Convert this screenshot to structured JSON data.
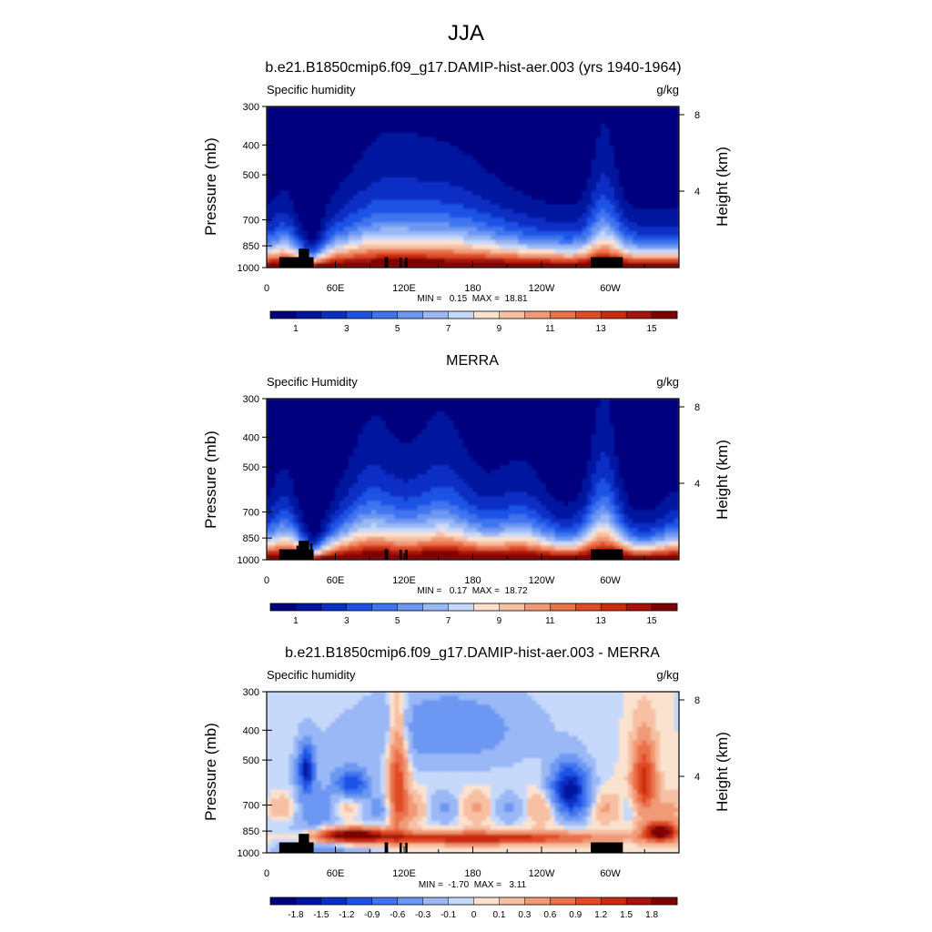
{
  "figure": {
    "title": "JJA"
  },
  "chart_data": [
    {
      "type": "heatmap",
      "title": "b.e21.B1850cmip6.f09_g17.DAMIP-hist-aer.003 (yrs 1940-1964)",
      "left_label": "Specific humidity",
      "right_label": "g/kg",
      "ylabel": "Pressure (mb)",
      "y2label": "Height (km)",
      "y_ticks": [
        "300",
        "400",
        "500",
        "700",
        "850",
        "1000"
      ],
      "y_tick_values": [
        300,
        400,
        500,
        700,
        850,
        1000
      ],
      "y2_ticks": [
        "8",
        "4"
      ],
      "y2_tick_values": [
        8,
        4
      ],
      "x_ticks": [
        "0",
        "60E",
        "120E",
        "180",
        "120W",
        "60W"
      ],
      "x_tick_values": [
        0,
        60,
        120,
        180,
        240,
        300
      ],
      "xlim": [
        0,
        360
      ],
      "ylim": [
        1000,
        300
      ],
      "minmax": "MIN =   0.15  MAX =  18.81",
      "min": 0.15,
      "max": 18.81,
      "colorbar_levels": [
        0,
        1,
        2,
        3,
        4,
        5,
        6,
        7,
        8,
        9,
        10,
        11,
        12,
        13,
        14,
        15
      ],
      "colorbar_labels": [
        "1",
        "3",
        "5",
        "7",
        "9",
        "11",
        "13",
        "15"
      ],
      "colorbar_label_values": [
        1,
        3,
        5,
        7,
        9,
        11,
        13,
        15
      ]
    },
    {
      "type": "heatmap",
      "title": "MERRA",
      "left_label": "Specific Humidity",
      "right_label": "g/kg",
      "ylabel": "Pressure (mb)",
      "y2label": "Height (km)",
      "y_ticks": [
        "300",
        "400",
        "500",
        "700",
        "850",
        "1000"
      ],
      "y_tick_values": [
        300,
        400,
        500,
        700,
        850,
        1000
      ],
      "y2_ticks": [
        "8",
        "4"
      ],
      "y2_tick_values": [
        8,
        4
      ],
      "x_ticks": [
        "0",
        "60E",
        "120E",
        "180",
        "120W",
        "60W"
      ],
      "x_tick_values": [
        0,
        60,
        120,
        180,
        240,
        300
      ],
      "xlim": [
        0,
        360
      ],
      "ylim": [
        1000,
        300
      ],
      "minmax": "MIN =   0.17  MAX =  18.72",
      "min": 0.17,
      "max": 18.72,
      "colorbar_levels": [
        0,
        1,
        2,
        3,
        4,
        5,
        6,
        7,
        8,
        9,
        10,
        11,
        12,
        13,
        14,
        15
      ],
      "colorbar_labels": [
        "1",
        "3",
        "5",
        "7",
        "9",
        "11",
        "13",
        "15"
      ],
      "colorbar_label_values": [
        1,
        3,
        5,
        7,
        9,
        11,
        13,
        15
      ]
    },
    {
      "type": "heatmap",
      "title": "b.e21.B1850cmip6.f09_g17.DAMIP-hist-aer.003 - MERRA",
      "left_label": "Specific humidity",
      "right_label": "g/kg",
      "ylabel": "Pressure (mb)",
      "y2label": "Height (km)",
      "y_ticks": [
        "300",
        "400",
        "500",
        "700",
        "850",
        "1000"
      ],
      "y_tick_values": [
        300,
        400,
        500,
        700,
        850,
        1000
      ],
      "y2_ticks": [
        "8",
        "4"
      ],
      "y2_tick_values": [
        8,
        4
      ],
      "x_ticks": [
        "0",
        "60E",
        "120E",
        "180",
        "120W",
        "60W"
      ],
      "x_tick_values": [
        0,
        60,
        120,
        180,
        240,
        300
      ],
      "xlim": [
        0,
        360
      ],
      "ylim": [
        1000,
        300
      ],
      "minmax": "MIN =  -1.70  MAX =   3.11",
      "min": -1.7,
      "max": 3.11,
      "colorbar_levels": [
        -2.1,
        -1.8,
        -1.5,
        -1.2,
        -0.9,
        -0.6,
        -0.3,
        -0.1,
        0,
        0.1,
        0.3,
        0.6,
        0.9,
        1.2,
        1.5,
        1.8
      ],
      "colorbar_labels": [
        "-1.8",
        "-1.5",
        "-1.2",
        "-0.9",
        "-0.6",
        "-0.3",
        "-0.1",
        "0",
        "0.1",
        "0.3",
        "0.6",
        "0.9",
        "1.2",
        "1.5",
        "1.8"
      ],
      "colorbar_label_values": [
        -1.8,
        -1.5,
        -1.2,
        -0.9,
        -0.6,
        -0.3,
        -0.1,
        0,
        0.1,
        0.3,
        0.6,
        0.9,
        1.2,
        1.5,
        1.8
      ]
    }
  ],
  "colors": {
    "palette": [
      "#00007f",
      "#00149e",
      "#0a2fc4",
      "#1e52e6",
      "#3f74f0",
      "#6c97f2",
      "#9ab8f5",
      "#c7d9fa",
      "#fbe2cf",
      "#f7c0a3",
      "#f19a76",
      "#ea724b",
      "#e04b26",
      "#cb2b0e",
      "#a8120a",
      "#7f0000"
    ],
    "land": "#000000"
  }
}
